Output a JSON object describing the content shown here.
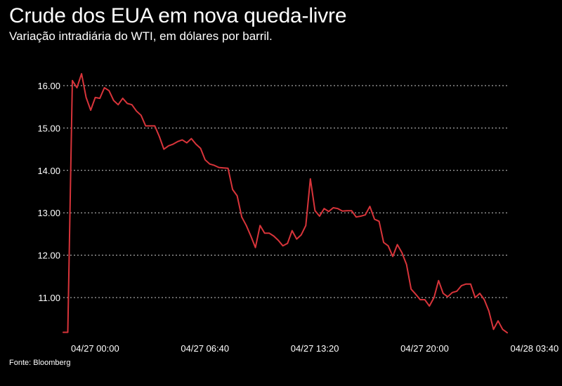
{
  "header": {
    "title": "Crude dos EUA em nova queda-livre",
    "subtitle": "Variação intradiária do WTI, em dólares por barril."
  },
  "footer": {
    "source": "Fonte: Bloomberg"
  },
  "colors": {
    "background": "#000000",
    "line": "#d8343a",
    "grid": "#cccccc",
    "text": "#ffffff"
  },
  "chart_data": {
    "type": "line",
    "title": "Crude dos EUA em nova queda-livre",
    "subtitle": "Variação intradiária do WTI, em dólares por barril.",
    "xlabel": "",
    "ylabel": "",
    "ylim": [
      10.2,
      16.5
    ],
    "grid": true,
    "yticks": [
      {
        "value": 11,
        "label": "11.00"
      },
      {
        "value": 12,
        "label": "12.00"
      },
      {
        "value": 13,
        "label": "13.00"
      },
      {
        "value": 14,
        "label": "14.00"
      },
      {
        "value": 15,
        "label": "15.00"
      },
      {
        "value": 16,
        "label": "16.00"
      }
    ],
    "xticks": [
      {
        "index": 2,
        "label": "04/27 00:00"
      },
      {
        "index": 26,
        "label": "04/27 06:40"
      },
      {
        "index": 50,
        "label": "04/27 13:20"
      },
      {
        "index": 74,
        "label": "04/27 20:00"
      },
      {
        "index": 98,
        "label": "04/28 03:40"
      }
    ],
    "series": [
      {
        "values": [
          10.18,
          10.18,
          16.12,
          15.95,
          16.28,
          15.72,
          15.42,
          15.72,
          15.7,
          15.95,
          15.88,
          15.65,
          15.55,
          15.7,
          15.58,
          15.55,
          15.4,
          15.3,
          15.05,
          15.05,
          15.05,
          14.8,
          14.5,
          14.58,
          14.62,
          14.68,
          14.72,
          14.65,
          14.75,
          14.62,
          14.52,
          14.25,
          14.15,
          14.12,
          14.07,
          14.06,
          14.05,
          13.55,
          13.4,
          12.9,
          12.7,
          12.45,
          12.18,
          12.7,
          12.52,
          12.52,
          12.45,
          12.35,
          12.22,
          12.28,
          12.58,
          12.38,
          12.48,
          12.7,
          13.8,
          13.05,
          12.92,
          13.1,
          13.03,
          13.12,
          13.1,
          13.04,
          13.05,
          13.05,
          12.9,
          12.92,
          12.95,
          13.15,
          12.85,
          12.8,
          12.3,
          12.22,
          11.97,
          12.25,
          12.06,
          11.78,
          11.2,
          11.08,
          10.95,
          10.95,
          10.8,
          11.0,
          11.4,
          11.1,
          11.02,
          11.12,
          11.15,
          11.28,
          11.32,
          11.32,
          11.0,
          11.1,
          10.95,
          10.68,
          10.25,
          10.45,
          10.25,
          10.17
        ]
      }
    ]
  }
}
